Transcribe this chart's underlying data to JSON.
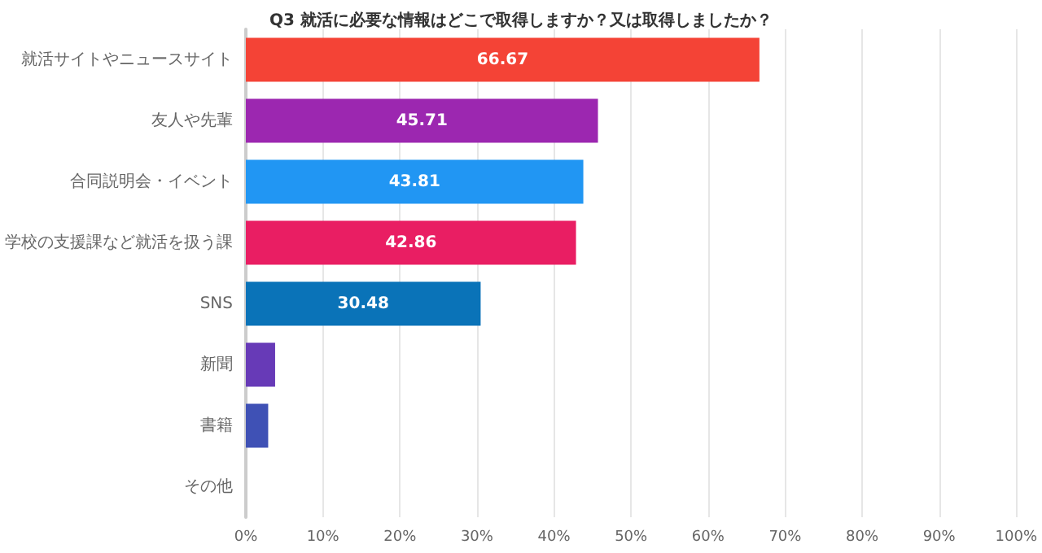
{
  "chart_data": {
    "type": "bar",
    "orientation": "horizontal",
    "title": "Q3 就活に必要な情報はどこで取得しますか？又は取得しましたか？",
    "categories": [
      "就活サイトやニュースサイト",
      "友人や先輩",
      "合同説明会・イベント",
      "学校の支援課など就活を扱う課",
      "SNS",
      "新聞",
      "書籍",
      "その他"
    ],
    "values": [
      66.67,
      45.71,
      43.81,
      42.86,
      30.48,
      3.8,
      2.9,
      0
    ],
    "colors": [
      "#f44336",
      "#9c27b0",
      "#2196f3",
      "#e91e63",
      "#0a73b8",
      "#673ab7",
      "#3f51b5",
      "#009688"
    ],
    "value_labels": [
      "66.67",
      "45.71",
      "43.81",
      "42.86",
      "30.48",
      null,
      null,
      null
    ],
    "xlim": [
      0,
      100
    ],
    "xticks": [
      {
        "value": 0,
        "label": "0%"
      },
      {
        "value": 10,
        "label": "10%"
      },
      {
        "value": 20,
        "label": "20%"
      },
      {
        "value": 30,
        "label": "30%"
      },
      {
        "value": 40,
        "label": "40%"
      },
      {
        "value": 50,
        "label": "50%"
      },
      {
        "value": 60,
        "label": "60%"
      },
      {
        "value": 70,
        "label": "70%"
      },
      {
        "value": 80,
        "label": "80%"
      },
      {
        "value": 90,
        "label": "90%"
      },
      {
        "value": 100,
        "label": "100%"
      }
    ],
    "grid": "x"
  }
}
